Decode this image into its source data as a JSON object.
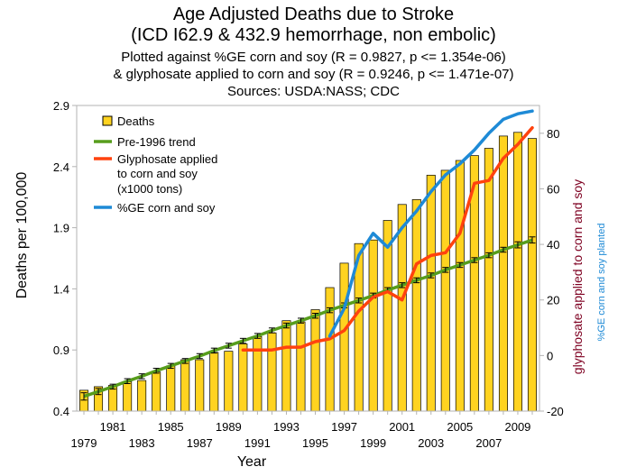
{
  "chart_data": {
    "type": "bar+line",
    "title_lines": [
      "Age Adjusted Deaths due to Stroke",
      "(ICD I62.9 & 432.9 hemorrhage, non embolic)",
      "Plotted against %GE corn and soy (R = 0.9827, p <= 1.354e-06)",
      "& glyphosate applied to corn and soy (R = 0.9246, p <= 1.471e-07)",
      "Sources: USDA:NASS; CDC"
    ],
    "xlabel": "Year",
    "ylabel": "Deaths per 100,000",
    "y2label_glyphosate": "glyphosate applied to corn and soy",
    "y2label_ge": "%GE corn and soy planted",
    "x_ticks": [
      "1979",
      "1981",
      "1983",
      "1985",
      "1987",
      "1989",
      "1991",
      "1993",
      "1995",
      "1997",
      "1999",
      "2001",
      "2003",
      "2005",
      "2007",
      "2009"
    ],
    "ylim": [
      0.4,
      2.9
    ],
    "y_ticks": [
      "0.4",
      "0.9",
      "1.4",
      "1.9",
      "2.4",
      "2.9"
    ],
    "y2lim": [
      -20,
      90
    ],
    "y2_ticks": [
      "-20",
      "0",
      "20",
      "40",
      "60",
      "80"
    ],
    "grid": false,
    "legend_position": "top-left",
    "colors": {
      "deaths_fill": "#ffd320",
      "deaths_stroke": "#000000",
      "trend": "#579d1c",
      "glyphosate": "#ff420e",
      "ge": "#1e8ad6",
      "label_glyphosate": "#7e0021",
      "label_ge": "#1e8ad6"
    },
    "series": [
      {
        "name": "Deaths",
        "axis": "left",
        "style": "bar",
        "years": [
          1979,
          1980,
          1981,
          1982,
          1983,
          1984,
          1985,
          1986,
          1987,
          1988,
          1989,
          1990,
          1991,
          1992,
          1993,
          1994,
          1995,
          1996,
          1997,
          1998,
          1999,
          2000,
          2001,
          2002,
          2003,
          2004,
          2005,
          2006,
          2007,
          2008,
          2009,
          2010
        ],
        "values": [
          0.57,
          0.6,
          0.61,
          0.64,
          0.65,
          0.72,
          0.77,
          0.82,
          0.82,
          0.88,
          0.89,
          0.95,
          1.01,
          1.04,
          1.14,
          1.13,
          1.23,
          1.41,
          1.61,
          1.77,
          1.8,
          1.96,
          2.09,
          2.13,
          2.33,
          2.37,
          2.45,
          2.49,
          2.55,
          2.65,
          2.68,
          2.63
        ]
      },
      {
        "name": "Pre-1996 trend",
        "axis": "left",
        "style": "line-with-errorbars",
        "years": [
          1979,
          1980,
          1981,
          1982,
          1983,
          1984,
          1985,
          1986,
          1987,
          1988,
          1989,
          1990,
          1991,
          1992,
          1993,
          1994,
          1995,
          1996,
          1997,
          1998,
          1999,
          2000,
          2001,
          2002,
          2003,
          2004,
          2005,
          2006,
          2007,
          2008,
          2009,
          2010
        ],
        "values": [
          0.52,
          0.56,
          0.6,
          0.645,
          0.685,
          0.73,
          0.77,
          0.81,
          0.85,
          0.895,
          0.935,
          0.975,
          1.015,
          1.06,
          1.1,
          1.14,
          1.18,
          1.225,
          1.265,
          1.305,
          1.345,
          1.39,
          1.43,
          1.47,
          1.51,
          1.555,
          1.595,
          1.635,
          1.675,
          1.72,
          1.76,
          1.8
        ],
        "error": [
          0.03,
          0.025,
          0.02,
          0.02,
          0.02,
          0.02,
          0.02,
          0.02,
          0.02,
          0.02,
          0.02,
          0.02,
          0.02,
          0.02,
          0.02,
          0.02,
          0.02,
          0.02,
          0.02,
          0.02,
          0.02,
          0.02,
          0.02,
          0.02,
          0.02,
          0.02,
          0.02,
          0.02,
          0.02,
          0.02,
          0.025,
          0.025
        ]
      },
      {
        "name": "Glyphosate applied to corn and soy (x1000 tons)",
        "legend_lines": [
          "Glyphosate applied",
          "to corn and soy",
          "(x1000 tons)"
        ],
        "axis": "right",
        "style": "line",
        "years": [
          1990,
          1991,
          1992,
          1993,
          1994,
          1995,
          1996,
          1997,
          1998,
          1999,
          2000,
          2001,
          2002,
          2003,
          2004,
          2005,
          2006,
          2007,
          2008,
          2009,
          2010
        ],
        "values": [
          2,
          2,
          2,
          3,
          3,
          5,
          6,
          9,
          16,
          21,
          23,
          20,
          33,
          36,
          37,
          44,
          62,
          63,
          71,
          76,
          82
        ]
      },
      {
        "name": "%GE corn and soy",
        "axis": "right",
        "style": "line",
        "years": [
          1996,
          1997,
          1998,
          1999,
          2000,
          2001,
          2002,
          2003,
          2004,
          2005,
          2006,
          2007,
          2008,
          2009,
          2010
        ],
        "values": [
          7,
          17,
          36,
          44,
          39,
          46,
          52,
          59,
          65,
          69,
          74,
          80,
          85,
          87,
          88
        ]
      }
    ]
  }
}
